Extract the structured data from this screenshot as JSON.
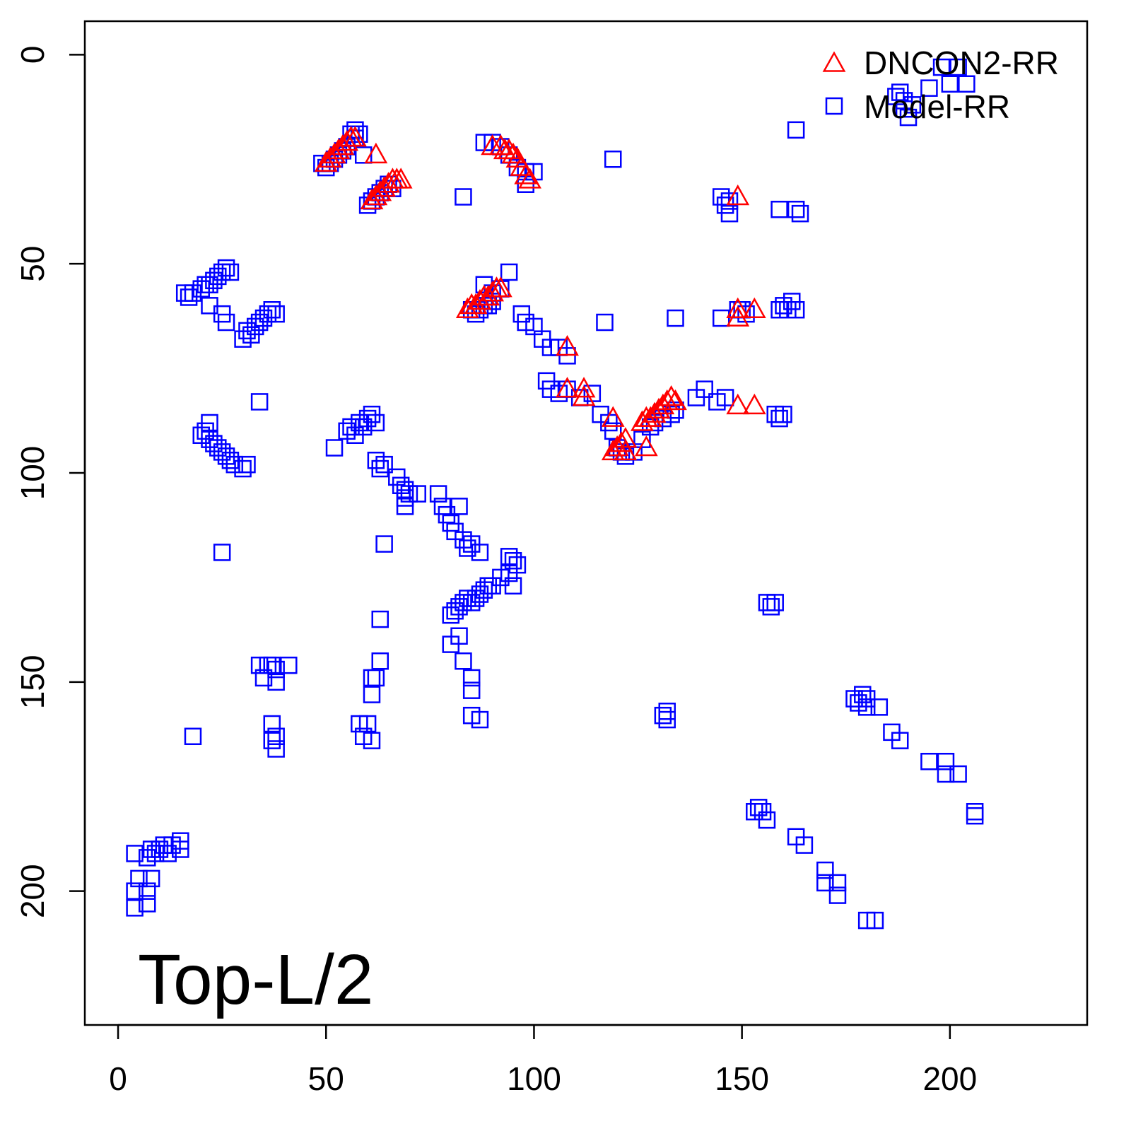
{
  "chart_data": {
    "type": "scatter",
    "title": "",
    "annotation": "Top-L/2",
    "xlabel": "",
    "ylabel": "",
    "xlim": [
      -8,
      233
    ],
    "ylim": [
      -8,
      232
    ],
    "y_inverted": true,
    "x_ticks": [
      0,
      50,
      100,
      150,
      200
    ],
    "x_tick_labels": [
      "0",
      "50",
      "100",
      "150",
      "200"
    ],
    "y_ticks": [
      0,
      50,
      100,
      150,
      200
    ],
    "y_tick_labels": [
      "0",
      "50",
      "100",
      "150",
      "200"
    ],
    "grid": false,
    "legend_position": "top-right",
    "series": [
      {
        "name": "DNCON2-RR",
        "marker": "triangle",
        "color": "#ff0000",
        "points": [
          [
            50,
            26
          ],
          [
            51,
            25
          ],
          [
            52,
            24
          ],
          [
            53,
            23
          ],
          [
            54,
            22
          ],
          [
            55,
            21
          ],
          [
            56,
            20
          ],
          [
            57,
            20
          ],
          [
            62,
            24
          ],
          [
            61,
            35
          ],
          [
            62,
            34
          ],
          [
            63,
            33
          ],
          [
            64,
            32
          ],
          [
            65,
            31
          ],
          [
            66,
            30
          ],
          [
            67,
            30
          ],
          [
            68,
            30
          ],
          [
            90,
            22
          ],
          [
            92,
            22
          ],
          [
            93,
            23
          ],
          [
            94,
            23
          ],
          [
            95,
            24
          ],
          [
            96,
            25
          ],
          [
            97,
            27
          ],
          [
            98,
            29
          ],
          [
            99,
            30
          ],
          [
            84,
            61
          ],
          [
            85,
            60
          ],
          [
            86,
            60
          ],
          [
            87,
            59
          ],
          [
            88,
            58
          ],
          [
            89,
            58
          ],
          [
            90,
            57
          ],
          [
            91,
            56
          ],
          [
            92,
            56
          ],
          [
            108,
            70
          ],
          [
            108,
            80
          ],
          [
            112,
            80
          ],
          [
            112,
            82
          ],
          [
            119,
            87
          ],
          [
            119,
            95
          ],
          [
            120,
            94
          ],
          [
            121,
            93
          ],
          [
            122,
            92
          ],
          [
            122,
            95
          ],
          [
            127,
            94
          ],
          [
            126,
            88
          ],
          [
            127,
            87
          ],
          [
            128,
            87
          ],
          [
            129,
            86
          ],
          [
            130,
            85
          ],
          [
            131,
            84
          ],
          [
            132,
            83
          ],
          [
            133,
            82
          ],
          [
            134,
            83
          ],
          [
            149,
            34
          ],
          [
            149,
            61
          ],
          [
            149,
            63
          ],
          [
            153,
            61
          ],
          [
            149,
            84
          ],
          [
            153,
            84
          ]
        ]
      },
      {
        "name": "Model-RR",
        "marker": "square",
        "color": "#0000ff",
        "points": [
          [
            49,
            26
          ],
          [
            50,
            27
          ],
          [
            51,
            26
          ],
          [
            52,
            25
          ],
          [
            53,
            24
          ],
          [
            54,
            23
          ],
          [
            55,
            22
          ],
          [
            56,
            19
          ],
          [
            57,
            18
          ],
          [
            57,
            20
          ],
          [
            58,
            19
          ],
          [
            59,
            24
          ],
          [
            60,
            36
          ],
          [
            61,
            35
          ],
          [
            62,
            34
          ],
          [
            63,
            33
          ],
          [
            64,
            32
          ],
          [
            65,
            31
          ],
          [
            66,
            32
          ],
          [
            83,
            34
          ],
          [
            88,
            21
          ],
          [
            90,
            21
          ],
          [
            92,
            22
          ],
          [
            94,
            24
          ],
          [
            96,
            27
          ],
          [
            98,
            28
          ],
          [
            100,
            28
          ],
          [
            98,
            31
          ],
          [
            119,
            25
          ],
          [
            85,
            61
          ],
          [
            86,
            62
          ],
          [
            87,
            61
          ],
          [
            88,
            60
          ],
          [
            89,
            60
          ],
          [
            90,
            59
          ],
          [
            88,
            55
          ],
          [
            90,
            57
          ],
          [
            92,
            56
          ],
          [
            94,
            52
          ],
          [
            97,
            62
          ],
          [
            98,
            64
          ],
          [
            100,
            65
          ],
          [
            102,
            68
          ],
          [
            104,
            70
          ],
          [
            106,
            70
          ],
          [
            108,
            72
          ],
          [
            103,
            78
          ],
          [
            104,
            80
          ],
          [
            106,
            81
          ],
          [
            108,
            80
          ],
          [
            111,
            82
          ],
          [
            114,
            81
          ],
          [
            116,
            86
          ],
          [
            117,
            64
          ],
          [
            118,
            88
          ],
          [
            119,
            90
          ],
          [
            120,
            94
          ],
          [
            121,
            95
          ],
          [
            122,
            96
          ],
          [
            124,
            95
          ],
          [
            126,
            92
          ],
          [
            128,
            89
          ],
          [
            129,
            88
          ],
          [
            131,
            87
          ],
          [
            133,
            86
          ],
          [
            134,
            85
          ],
          [
            134,
            63
          ],
          [
            139,
            82
          ],
          [
            141,
            80
          ],
          [
            144,
            83
          ],
          [
            145,
            63
          ],
          [
            146,
            82
          ],
          [
            145,
            34
          ],
          [
            146,
            36
          ],
          [
            147,
            38
          ],
          [
            147,
            35
          ],
          [
            149,
            61
          ],
          [
            150,
            61
          ],
          [
            151,
            62
          ],
          [
            159,
            37
          ],
          [
            163,
            37
          ],
          [
            164,
            38
          ],
          [
            159,
            61
          ],
          [
            160,
            60
          ],
          [
            161,
            61
          ],
          [
            162,
            59
          ],
          [
            163,
            61
          ],
          [
            163,
            18
          ],
          [
            158,
            86
          ],
          [
            159,
            87
          ],
          [
            160,
            86
          ],
          [
            187,
            10
          ],
          [
            188,
            9
          ],
          [
            189,
            11
          ],
          [
            189,
            13
          ],
          [
            190,
            15
          ],
          [
            191,
            12
          ],
          [
            195,
            8
          ],
          [
            198,
            3
          ],
          [
            200,
            7
          ],
          [
            202,
            3
          ],
          [
            204,
            7
          ],
          [
            16,
            57
          ],
          [
            17,
            58
          ],
          [
            18,
            57
          ],
          [
            20,
            56
          ],
          [
            21,
            55
          ],
          [
            22,
            55
          ],
          [
            23,
            54
          ],
          [
            24,
            53
          ],
          [
            25,
            52
          ],
          [
            26,
            51
          ],
          [
            27,
            52
          ],
          [
            22,
            60
          ],
          [
            25,
            62
          ],
          [
            26,
            64
          ],
          [
            30,
            68
          ],
          [
            31,
            66
          ],
          [
            32,
            67
          ],
          [
            33,
            65
          ],
          [
            34,
            64
          ],
          [
            35,
            63
          ],
          [
            36,
            62
          ],
          [
            37,
            61
          ],
          [
            38,
            62
          ],
          [
            34,
            83
          ],
          [
            20,
            91
          ],
          [
            21,
            90
          ],
          [
            22,
            92
          ],
          [
            23,
            93
          ],
          [
            24,
            94
          ],
          [
            25,
            95
          ],
          [
            26,
            96
          ],
          [
            27,
            97
          ],
          [
            28,
            98
          ],
          [
            30,
            99
          ],
          [
            31,
            98
          ],
          [
            22,
            88
          ],
          [
            25,
            119
          ],
          [
            52,
            94
          ],
          [
            55,
            90
          ],
          [
            56,
            89
          ],
          [
            57,
            91
          ],
          [
            58,
            88
          ],
          [
            59,
            89
          ],
          [
            60,
            87
          ],
          [
            61,
            86
          ],
          [
            62,
            88
          ],
          [
            62,
            97
          ],
          [
            63,
            99
          ],
          [
            64,
            98
          ],
          [
            67,
            101
          ],
          [
            68,
            103
          ],
          [
            69,
            104
          ],
          [
            69,
            106
          ],
          [
            70,
            105
          ],
          [
            69,
            108
          ],
          [
            72,
            105
          ],
          [
            77,
            105
          ],
          [
            78,
            108
          ],
          [
            79,
            110
          ],
          [
            80,
            112
          ],
          [
            81,
            114
          ],
          [
            82,
            108
          ],
          [
            83,
            116
          ],
          [
            84,
            118
          ],
          [
            85,
            117
          ],
          [
            87,
            119
          ],
          [
            94,
            120
          ],
          [
            95,
            121
          ],
          [
            96,
            122
          ],
          [
            94,
            124
          ],
          [
            92,
            125
          ],
          [
            95,
            127
          ],
          [
            80,
            134
          ],
          [
            81,
            133
          ],
          [
            82,
            132
          ],
          [
            83,
            131
          ],
          [
            84,
            130
          ],
          [
            85,
            131
          ],
          [
            86,
            130
          ],
          [
            87,
            129
          ],
          [
            88,
            128
          ],
          [
            89,
            127
          ],
          [
            90,
            127
          ],
          [
            80,
            141
          ],
          [
            82,
            139
          ],
          [
            83,
            145
          ],
          [
            85,
            149
          ],
          [
            85,
            152
          ],
          [
            85,
            158
          ],
          [
            87,
            159
          ],
          [
            64,
            117
          ],
          [
            63,
            135
          ],
          [
            63,
            145
          ],
          [
            62,
            149
          ],
          [
            61,
            149
          ],
          [
            61,
            153
          ],
          [
            58,
            160
          ],
          [
            60,
            160
          ],
          [
            59,
            163
          ],
          [
            61,
            164
          ],
          [
            18,
            163
          ],
          [
            34,
            146
          ],
          [
            35,
            149
          ],
          [
            36,
            146
          ],
          [
            37,
            146
          ],
          [
            38,
            147
          ],
          [
            38,
            150
          ],
          [
            41,
            146
          ],
          [
            37,
            160
          ],
          [
            37,
            164
          ],
          [
            38,
            163
          ],
          [
            38,
            166
          ],
          [
            4,
            191
          ],
          [
            5,
            197
          ],
          [
            4,
            200
          ],
          [
            4,
            204
          ],
          [
            7,
            203
          ],
          [
            7,
            200
          ],
          [
            8,
            197
          ],
          [
            7,
            192
          ],
          [
            8,
            190
          ],
          [
            9,
            191
          ],
          [
            10,
            190
          ],
          [
            11,
            189
          ],
          [
            12,
            191
          ],
          [
            13,
            189
          ],
          [
            15,
            188
          ],
          [
            15,
            190
          ],
          [
            132,
            157
          ],
          [
            132,
            159
          ],
          [
            131,
            158
          ],
          [
            156,
            131
          ],
          [
            157,
            132
          ],
          [
            158,
            131
          ],
          [
            177,
            154
          ],
          [
            178,
            155
          ],
          [
            179,
            153
          ],
          [
            180,
            154
          ],
          [
            180,
            156
          ],
          [
            183,
            156
          ],
          [
            186,
            162
          ],
          [
            188,
            164
          ],
          [
            195,
            169
          ],
          [
            199,
            169
          ],
          [
            199,
            172
          ],
          [
            202,
            172
          ],
          [
            206,
            181
          ],
          [
            206,
            182
          ],
          [
            153,
            181
          ],
          [
            154,
            180
          ],
          [
            155,
            181
          ],
          [
            156,
            183
          ],
          [
            163,
            187
          ],
          [
            165,
            189
          ],
          [
            170,
            195
          ],
          [
            170,
            198
          ],
          [
            173,
            198
          ],
          [
            173,
            201
          ],
          [
            180,
            207
          ],
          [
            182,
            207
          ]
        ]
      }
    ]
  }
}
